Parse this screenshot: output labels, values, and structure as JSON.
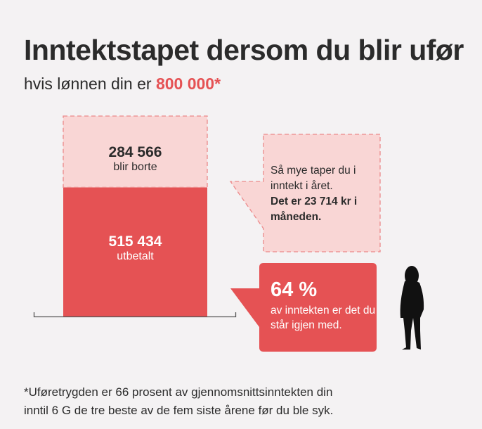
{
  "title": "Inntektstapet dersom du blir ufør",
  "subtitle": {
    "prefix": "hvis lønnen din er ",
    "highlight": "800 000*"
  },
  "chart_data": {
    "type": "bar",
    "stacked": true,
    "total": 800000,
    "segments": [
      {
        "label": "utbetalt",
        "value_text": "515 434",
        "value": 515434,
        "color": "#e55254"
      },
      {
        "label": "blir borte",
        "value_text": "284 566",
        "value": 284566,
        "color": "#f9d6d5"
      }
    ]
  },
  "callout_loss": {
    "text": "Så mye taper du i inntekt i året.",
    "bold": "Det er 23 714 kr i måneden."
  },
  "callout_keep": {
    "percent": "64 %",
    "text": "av inntekten er det du står igjen med."
  },
  "footnote": {
    "line1": "*Uføretrygden er 66 prosent av gjennomsnittsinntekten din",
    "line2": "inntil 6 G de tre beste av de fem siste årene før du ble syk."
  },
  "colors": {
    "accent": "#e55254",
    "light": "#f9d6d5",
    "background": "#f4f2f3"
  },
  "icons": [
    "person-silhouette-icon"
  ]
}
